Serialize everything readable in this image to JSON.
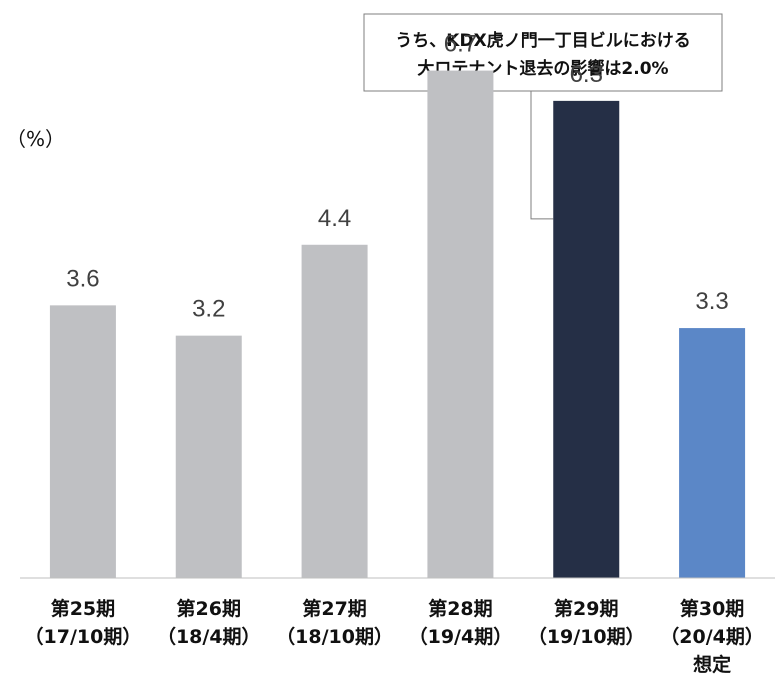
{
  "chart_data": {
    "type": "bar",
    "unit_label": "（%）",
    "categories": [
      [
        "第25期",
        "（17/10期）"
      ],
      [
        "第26期",
        "（18/4期）"
      ],
      [
        "第27期",
        "（18/10期）"
      ],
      [
        "第28期",
        "（19/4期）"
      ],
      [
        "第29期",
        "（19/10期）"
      ],
      [
        "第30期",
        "（20/4期）",
        "想定"
      ]
    ],
    "values": [
      3.6,
      3.2,
      4.4,
      6.7,
      6.3,
      3.3
    ],
    "value_labels": [
      "3.6",
      "3.2",
      "4.4",
      "6.7",
      "6.3",
      "3.3"
    ],
    "bar_colors": [
      "#bfc0c3",
      "#bfc0c3",
      "#bfc0c3",
      "#bfc0c3",
      "#252f46",
      "#5b87c7"
    ],
    "ylim": [
      0,
      7.5
    ],
    "grid": false,
    "legend": "none",
    "annotation": {
      "lines": [
        "うち、KDX虎ノ門一丁目ビルにおける",
        "大ロテナント退去の影響は2.0%"
      ],
      "target_category_index": 4
    }
  }
}
